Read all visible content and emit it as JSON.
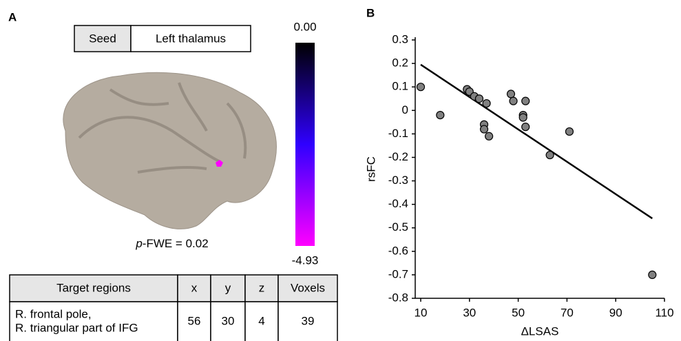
{
  "panel_a": {
    "label": "A",
    "seed_table": [
      "Seed",
      "Left thalamus"
    ],
    "colorbar": {
      "colors": [
        "#000000",
        "#2f00ff",
        "#ff00ff"
      ],
      "ticks": [
        {
          "value": 0,
          "label": "0.00"
        },
        -4.93
      ]
    },
    "p_fwe": [
      "p",
      "-FWE = 0.02"
    ],
    "table": {
      "header": [
        "Target regions",
        "x",
        "y",
        "z",
        "Voxels"
      ],
      "rows": [
        [
          [
            "R. frontal pole,",
            "R. triangular part of IFG"
          ],
          56,
          30,
          4,
          39
        ]
      ]
    }
  },
  "chart_data": {
    "type": "scatter",
    "panel_label": "B",
    "x_label": "ΔLSAS",
    "y_label": "rsFC",
    "color": "#808080",
    "x": [
      10,
      18,
      29,
      30,
      32,
      34,
      36,
      36,
      37,
      38,
      47,
      48,
      52,
      52,
      53,
      53,
      63,
      71,
      105
    ],
    "values": [
      0.1,
      -0.02,
      0.09,
      0.08,
      0.06,
      0.05,
      -0.06,
      -0.08,
      0.03,
      -0.11,
      0.07,
      0.04,
      -0.02,
      -0.03,
      0.04,
      -0.07,
      -0.19,
      -0.09,
      -0.7
    ],
    "fit_line": {
      "x": [
        10,
        105
      ],
      "y": [
        0.195,
        -0.46
      ]
    },
    "xlim": [
      10,
      110
    ],
    "xticks": [
      10,
      30,
      50,
      70,
      90,
      110
    ],
    "ylim": [
      -0.8,
      0.3
    ],
    "yticks": [
      -0.8,
      -0.7,
      -0.6,
      -0.5,
      -0.4,
      -0.3,
      -0.2,
      -0.1,
      0,
      0.1,
      0.2,
      0.3
    ]
  }
}
